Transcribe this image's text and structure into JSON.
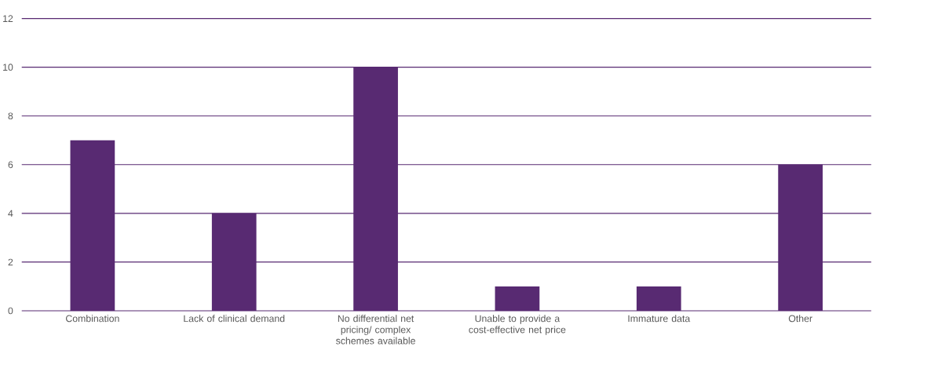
{
  "chart_data": {
    "type": "bar",
    "categories": [
      "Combination",
      "Lack of clinical demand",
      "No differential net pricing/ complex schemes available",
      "Unable to provide a cost-effective net price",
      "Immature data",
      "Other"
    ],
    "values": [
      7,
      4,
      10,
      1,
      1,
      6
    ],
    "color": "#582a72",
    "ylim": [
      0,
      12
    ],
    "yticks": [
      0,
      2,
      4,
      6,
      8,
      10,
      12
    ],
    "grid": "y"
  }
}
